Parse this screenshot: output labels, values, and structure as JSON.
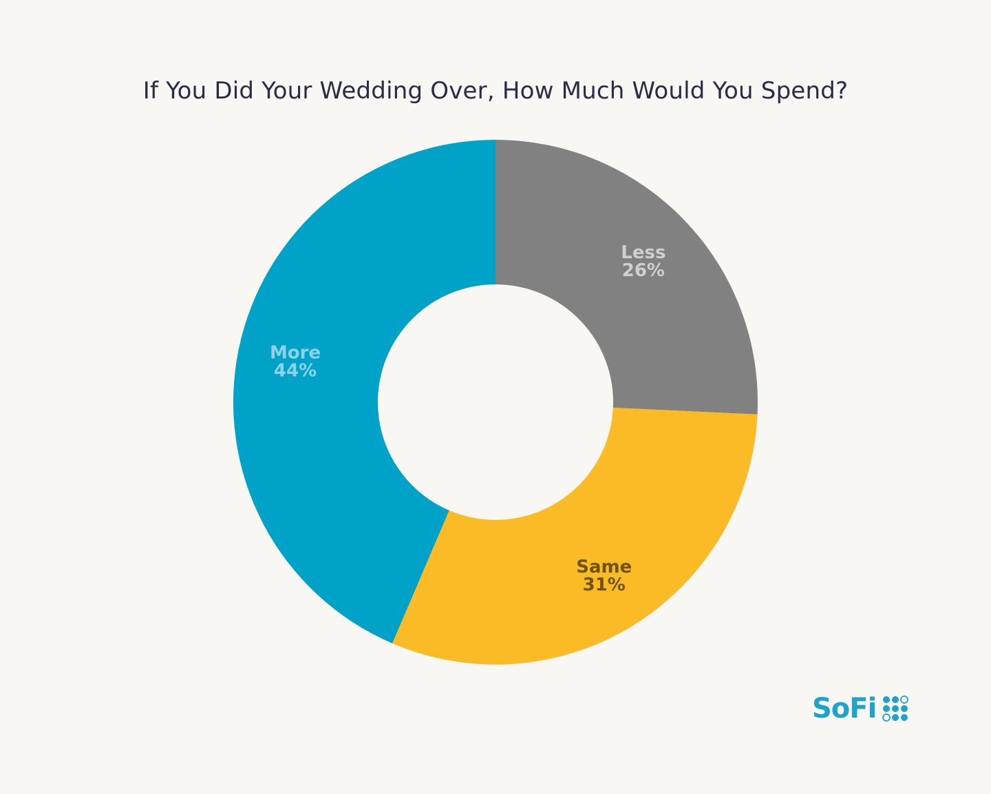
{
  "chart_data": {
    "type": "pie",
    "title": "If You Did Your Wedding Over, How Much Would You Spend?",
    "categories": [
      "Less",
      "Same",
      "More"
    ],
    "values": [
      26,
      31,
      44
    ],
    "value_labels": [
      "26%",
      "31%",
      "44%"
    ],
    "colors": [
      "#818181",
      "#fbbb26",
      "#00a2c7"
    ],
    "label_colors": [
      "#cfcfcf",
      "#6d5510",
      "#8fd2e6"
    ],
    "donut": true
  },
  "brand": {
    "logo_text": "SoFi",
    "logo_color": "#1ea3cb"
  }
}
